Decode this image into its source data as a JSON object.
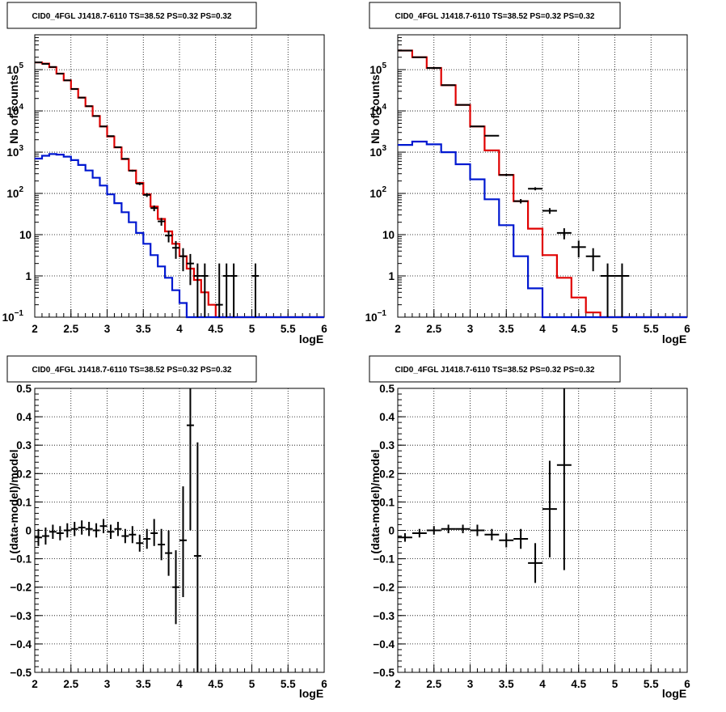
{
  "chart_data": [
    {
      "panel": "top-left",
      "type": "step-histogram-with-points",
      "title": "CID0_4FGL J1418.7-6110 TS=38.52 PS=0.32 PS=0.32",
      "xlabel": "logE",
      "ylabel": "Nb of counts",
      "yscale": "log",
      "xlim": [
        2,
        6
      ],
      "ylim": [
        0.1,
        700000
      ],
      "xticks": [
        "2",
        "2.5",
        "3",
        "3.5",
        "4",
        "4.5",
        "5",
        "5.5",
        "6"
      ],
      "yticks": [
        {
          "v": 0.1,
          "base": "10",
          "exp": "−1"
        },
        {
          "v": 1,
          "label": "1"
        },
        {
          "v": 10,
          "label": "10"
        },
        {
          "v": 100,
          "base": "10",
          "exp": "2"
        },
        {
          "v": 1000,
          "base": "10",
          "exp": "3"
        },
        {
          "v": 10000,
          "base": "10",
          "exp": "4"
        },
        {
          "v": 100000,
          "base": "10",
          "exp": "5"
        }
      ],
      "grid": true,
      "bin_edges": [
        2.0,
        2.1,
        2.2,
        2.3,
        2.4,
        2.5,
        2.6,
        2.7,
        2.8,
        2.9,
        3.0,
        3.1,
        3.2,
        3.3,
        3.4,
        3.5,
        3.6,
        3.7,
        3.8,
        3.9,
        4.0,
        4.1,
        4.2,
        4.3,
        4.4,
        4.5,
        4.6,
        4.7,
        4.8,
        4.9,
        5.0,
        5.1,
        5.2,
        5.3,
        5.4,
        5.5,
        5.6,
        5.7,
        5.8,
        5.9,
        6.0
      ],
      "series": [
        {
          "color": "#e00000",
          "values": [
            150000,
            140000,
            115000,
            80000,
            55000,
            34000,
            21000,
            13000,
            7500,
            4200,
            2400,
            1300,
            680,
            360,
            180,
            95,
            48,
            24,
            12,
            6,
            3,
            1.5,
            0.8,
            0.4,
            0.2,
            0.1,
            0.07,
            0.05,
            0.05,
            0.05,
            0.05,
            0.05,
            0.05,
            0.05,
            0.05,
            0.05,
            0.05,
            0.05,
            0.05,
            0.05
          ]
        },
        {
          "color": "#0018d0",
          "values": [
            700,
            820,
            900,
            870,
            780,
            640,
            490,
            360,
            240,
            155,
            95,
            58,
            35,
            20,
            11,
            6,
            3.2,
            1.7,
            0.9,
            0.45,
            0.22,
            0.1,
            0.05,
            0.05,
            0.05,
            0.05,
            0.05,
            0.05,
            0.05,
            0.05,
            0.05,
            0.05,
            0.05,
            0.05,
            0.05,
            0.05,
            0.05,
            0.05,
            0.05,
            0.05
          ]
        }
      ],
      "points": [
        {
          "x": 2.05,
          "y": 150000,
          "lo": 149000,
          "hi": 151000
        },
        {
          "x": 2.15,
          "y": 138000,
          "lo": 137000,
          "hi": 139000
        },
        {
          "x": 2.25,
          "y": 116000,
          "lo": 115000,
          "hi": 117000
        },
        {
          "x": 2.35,
          "y": 80000,
          "lo": 79000,
          "hi": 81000
        },
        {
          "x": 2.45,
          "y": 55000,
          "lo": 54500,
          "hi": 55500
        },
        {
          "x": 2.55,
          "y": 34000,
          "lo": 33700,
          "hi": 34300
        },
        {
          "x": 2.65,
          "y": 21000,
          "lo": 20800,
          "hi": 21200
        },
        {
          "x": 2.75,
          "y": 13000,
          "lo": 12880,
          "hi": 13120
        },
        {
          "x": 2.85,
          "y": 7500,
          "lo": 7410,
          "hi": 7590
        },
        {
          "x": 2.95,
          "y": 4200,
          "lo": 4135,
          "hi": 4265
        },
        {
          "x": 3.05,
          "y": 2450,
          "lo": 2400,
          "hi": 2500
        },
        {
          "x": 3.15,
          "y": 1320,
          "lo": 1285,
          "hi": 1355
        },
        {
          "x": 3.25,
          "y": 690,
          "lo": 665,
          "hi": 715
        },
        {
          "x": 3.35,
          "y": 355,
          "lo": 336,
          "hi": 374
        },
        {
          "x": 3.45,
          "y": 172,
          "lo": 159,
          "hi": 185
        },
        {
          "x": 3.55,
          "y": 92,
          "lo": 82,
          "hi": 102
        },
        {
          "x": 3.65,
          "y": 44,
          "lo": 37,
          "hi": 51
        },
        {
          "x": 3.75,
          "y": 21,
          "lo": 16.5,
          "hi": 25.5
        },
        {
          "x": 3.85,
          "y": 9.5,
          "lo": 6.5,
          "hi": 12.5
        },
        {
          "x": 3.95,
          "y": 4.8,
          "lo": 2.6,
          "hi": 7
        },
        {
          "x": 4.05,
          "y": 3,
          "lo": 1.3,
          "hi": 4.7
        },
        {
          "x": 4.15,
          "y": 2,
          "lo": 0.6,
          "hi": 3.4
        },
        {
          "x": 4.25,
          "y": 1,
          "lo": 0.1,
          "hi": 2
        },
        {
          "x": 4.35,
          "y": 1,
          "lo": 0.1,
          "hi": 2
        },
        {
          "x": 4.55,
          "y": 0.2,
          "lo": 0.1,
          "hi": 2
        },
        {
          "x": 4.65,
          "y": 1,
          "lo": 0.1,
          "hi": 2
        },
        {
          "x": 4.75,
          "y": 1,
          "lo": 0.1,
          "hi": 2
        },
        {
          "x": 5.05,
          "y": 1,
          "lo": 0.1,
          "hi": 2
        }
      ]
    },
    {
      "panel": "top-right",
      "type": "step-histogram-with-points",
      "title": "CID0_4FGL J1418.7-6110 TS=38.52 PS=0.32 PS=0.32",
      "xlabel": "logE",
      "ylabel": "Nb of counts",
      "yscale": "log",
      "xlim": [
        2,
        6
      ],
      "ylim": [
        0.1,
        700000
      ],
      "xticks": [
        "2",
        "2.5",
        "3",
        "3.5",
        "4",
        "4.5",
        "5",
        "5.5",
        "6"
      ],
      "yticks": [
        {
          "v": 0.1,
          "base": "10",
          "exp": "−1"
        },
        {
          "v": 1,
          "label": "1"
        },
        {
          "v": 10,
          "label": "10"
        },
        {
          "v": 100,
          "base": "10",
          "exp": "2"
        },
        {
          "v": 1000,
          "base": "10",
          "exp": "3"
        },
        {
          "v": 10000,
          "base": "10",
          "exp": "4"
        },
        {
          "v": 100000,
          "base": "10",
          "exp": "5"
        }
      ],
      "grid": true,
      "bin_edges": [
        2.0,
        2.2,
        2.4,
        2.6,
        2.8,
        3.0,
        3.2,
        3.4,
        3.6,
        3.8,
        4.0,
        4.2,
        4.4,
        4.6,
        4.8,
        5.0,
        5.2,
        5.4,
        5.6,
        5.8,
        6.0
      ],
      "series": [
        {
          "color": "#e00000",
          "values": [
            290000,
            200000,
            110000,
            42000,
            14000,
            4200,
            1100,
            280,
            65,
            14,
            3.2,
            0.9,
            0.3,
            0.13,
            0.08,
            0.05,
            0.05,
            0.05,
            0.05,
            0.05
          ]
        },
        {
          "color": "#0018d0",
          "values": [
            1500,
            1800,
            1550,
            1000,
            510,
            220,
            72,
            17,
            3,
            0.5,
            0.08,
            0.05,
            0.05,
            0.05,
            0.05,
            0.05,
            0.05,
            0.05,
            0.05,
            0.05
          ]
        }
      ],
      "points": [
        {
          "x": 2.1,
          "y": 290000,
          "lo": 289000,
          "hi": 291000
        },
        {
          "x": 2.3,
          "y": 200000,
          "lo": 199000,
          "hi": 201000
        },
        {
          "x": 2.5,
          "y": 110000,
          "lo": 109000,
          "hi": 111000
        },
        {
          "x": 2.7,
          "y": 42000,
          "lo": 41700,
          "hi": 42300
        },
        {
          "x": 2.9,
          "y": 14000,
          "lo": 13850,
          "hi": 14150
        },
        {
          "x": 3.1,
          "y": 4200,
          "lo": 4120,
          "hi": 4280
        },
        {
          "x": 3.3,
          "y": 2500,
          "lo": 2450,
          "hi": 2550
        },
        {
          "x": 3.5,
          "y": 280,
          "lo": 264,
          "hi": 296
        },
        {
          "x": 3.7,
          "y": 65,
          "lo": 57,
          "hi": 73
        },
        {
          "x": 3.9,
          "y": 130,
          "lo": 119,
          "hi": 141
        },
        {
          "x": 4.1,
          "y": 38,
          "lo": 32,
          "hi": 44
        },
        {
          "x": 4.3,
          "y": 11,
          "lo": 7.7,
          "hi": 14.3
        },
        {
          "x": 4.5,
          "y": 5,
          "lo": 2.8,
          "hi": 7.2
        },
        {
          "x": 4.7,
          "y": 3,
          "lo": 1.3,
          "hi": 4.7
        },
        {
          "x": 4.9,
          "y": 1,
          "lo": 0.1,
          "hi": 2
        },
        {
          "x": 5.1,
          "y": 1,
          "lo": 0.1,
          "hi": 2
        }
      ]
    },
    {
      "panel": "bottom-left",
      "type": "scatter-with-errorbars",
      "title": "CID0_4FGL J1418.7-6110 TS=38.52 PS=0.32 PS=0.32",
      "xlabel": "logE",
      "ylabel": "(data-model)/model",
      "yscale": "linear",
      "xlim": [
        2,
        6
      ],
      "ylim": [
        -0.5,
        0.5
      ],
      "xticks": [
        "2",
        "2.5",
        "3",
        "3.5",
        "4",
        "4.5",
        "5",
        "5.5",
        "6"
      ],
      "yticks": [
        {
          "v": -0.5,
          "label": "−0.5"
        },
        {
          "v": -0.4,
          "label": "−0.4"
        },
        {
          "v": -0.3,
          "label": "−0.3"
        },
        {
          "v": -0.2,
          "label": "−0.2"
        },
        {
          "v": -0.1,
          "label": "−0.1"
        },
        {
          "v": 0,
          "label": "0"
        },
        {
          "v": 0.1,
          "label": "0.1"
        },
        {
          "v": 0.2,
          "label": "0.2"
        },
        {
          "v": 0.3,
          "label": "0.3"
        },
        {
          "v": 0.4,
          "label": "0.4"
        },
        {
          "v": 0.5,
          "label": "0.5"
        }
      ],
      "grid": true,
      "binwidth": 0.1,
      "points": [
        {
          "x": 2.05,
          "y": -0.025,
          "lo": -0.055,
          "hi": 0.005
        },
        {
          "x": 2.15,
          "y": -0.02,
          "lo": -0.05,
          "hi": 0.01
        },
        {
          "x": 2.25,
          "y": -0.005,
          "lo": -0.03,
          "hi": 0.02
        },
        {
          "x": 2.35,
          "y": -0.01,
          "lo": -0.035,
          "hi": 0.015
        },
        {
          "x": 2.45,
          "y": 0.0,
          "lo": -0.025,
          "hi": 0.025
        },
        {
          "x": 2.55,
          "y": 0.005,
          "lo": -0.02,
          "hi": 0.03
        },
        {
          "x": 2.65,
          "y": 0.01,
          "lo": -0.015,
          "hi": 0.035
        },
        {
          "x": 2.75,
          "y": 0.005,
          "lo": -0.02,
          "hi": 0.03
        },
        {
          "x": 2.85,
          "y": 0.0,
          "lo": -0.025,
          "hi": 0.025
        },
        {
          "x": 2.95,
          "y": 0.015,
          "lo": -0.01,
          "hi": 0.04
        },
        {
          "x": 3.05,
          "y": -0.005,
          "lo": -0.03,
          "hi": 0.02
        },
        {
          "x": 3.15,
          "y": 0.005,
          "lo": -0.02,
          "hi": 0.03
        },
        {
          "x": 3.25,
          "y": -0.02,
          "lo": -0.045,
          "hi": 0.005
        },
        {
          "x": 3.35,
          "y": -0.015,
          "lo": -0.045,
          "hi": 0.015
        },
        {
          "x": 3.45,
          "y": -0.045,
          "lo": -0.075,
          "hi": -0.015
        },
        {
          "x": 3.55,
          "y": -0.03,
          "lo": -0.065,
          "hi": 0.005
        },
        {
          "x": 3.65,
          "y": -0.01,
          "lo": -0.055,
          "hi": 0.04
        },
        {
          "x": 3.75,
          "y": -0.05,
          "lo": -0.105,
          "hi": 0.005
        },
        {
          "x": 3.85,
          "y": -0.08,
          "lo": -0.16,
          "hi": 0.0
        },
        {
          "x": 3.95,
          "y": -0.2,
          "lo": -0.33,
          "hi": -0.07
        },
        {
          "x": 4.05,
          "y": -0.035,
          "lo": -0.235,
          "hi": 0.155
        },
        {
          "x": 4.15,
          "y": 0.37,
          "lo": 0.0,
          "hi": 0.5
        },
        {
          "x": 4.25,
          "y": -0.09,
          "lo": -0.5,
          "hi": 0.31
        }
      ]
    },
    {
      "panel": "bottom-right",
      "type": "scatter-with-errorbars",
      "title": "CID0_4FGL J1418.7-6110 TS=38.52 PS=0.32 PS=0.32",
      "xlabel": "logE",
      "ylabel": "(data-model)/model",
      "yscale": "linear",
      "xlim": [
        2,
        6
      ],
      "ylim": [
        -0.5,
        0.5
      ],
      "xticks": [
        "2",
        "2.5",
        "3",
        "3.5",
        "4",
        "4.5",
        "5",
        "5.5",
        "6"
      ],
      "yticks": [
        {
          "v": -0.5,
          "label": "−0.5"
        },
        {
          "v": -0.4,
          "label": "−0.4"
        },
        {
          "v": -0.3,
          "label": "−0.3"
        },
        {
          "v": -0.2,
          "label": "−0.2"
        },
        {
          "v": -0.1,
          "label": "−0.1"
        },
        {
          "v": 0,
          "label": "0"
        },
        {
          "v": 0.1,
          "label": "0.1"
        },
        {
          "v": 0.2,
          "label": "0.2"
        },
        {
          "v": 0.3,
          "label": "0.3"
        },
        {
          "v": 0.4,
          "label": "0.4"
        },
        {
          "v": 0.5,
          "label": "0.5"
        }
      ],
      "grid": true,
      "binwidth": 0.2,
      "points": [
        {
          "x": 2.1,
          "y": -0.025,
          "lo": -0.04,
          "hi": -0.01
        },
        {
          "x": 2.3,
          "y": -0.01,
          "lo": -0.025,
          "hi": 0.005
        },
        {
          "x": 2.5,
          "y": 0.0,
          "lo": -0.015,
          "hi": 0.015
        },
        {
          "x": 2.7,
          "y": 0.005,
          "lo": -0.01,
          "hi": 0.02
        },
        {
          "x": 2.9,
          "y": 0.005,
          "lo": -0.01,
          "hi": 0.02
        },
        {
          "x": 3.1,
          "y": 0.0,
          "lo": -0.02,
          "hi": 0.02
        },
        {
          "x": 3.3,
          "y": -0.015,
          "lo": -0.035,
          "hi": 0.005
        },
        {
          "x": 3.5,
          "y": -0.035,
          "lo": -0.06,
          "hi": -0.01
        },
        {
          "x": 3.7,
          "y": -0.03,
          "lo": -0.065,
          "hi": 0.005
        },
        {
          "x": 3.9,
          "y": -0.115,
          "lo": -0.185,
          "hi": -0.045
        },
        {
          "x": 4.1,
          "y": 0.075,
          "lo": -0.095,
          "hi": 0.245
        },
        {
          "x": 4.3,
          "y": 0.23,
          "lo": -0.14,
          "hi": 0.5
        }
      ]
    }
  ]
}
